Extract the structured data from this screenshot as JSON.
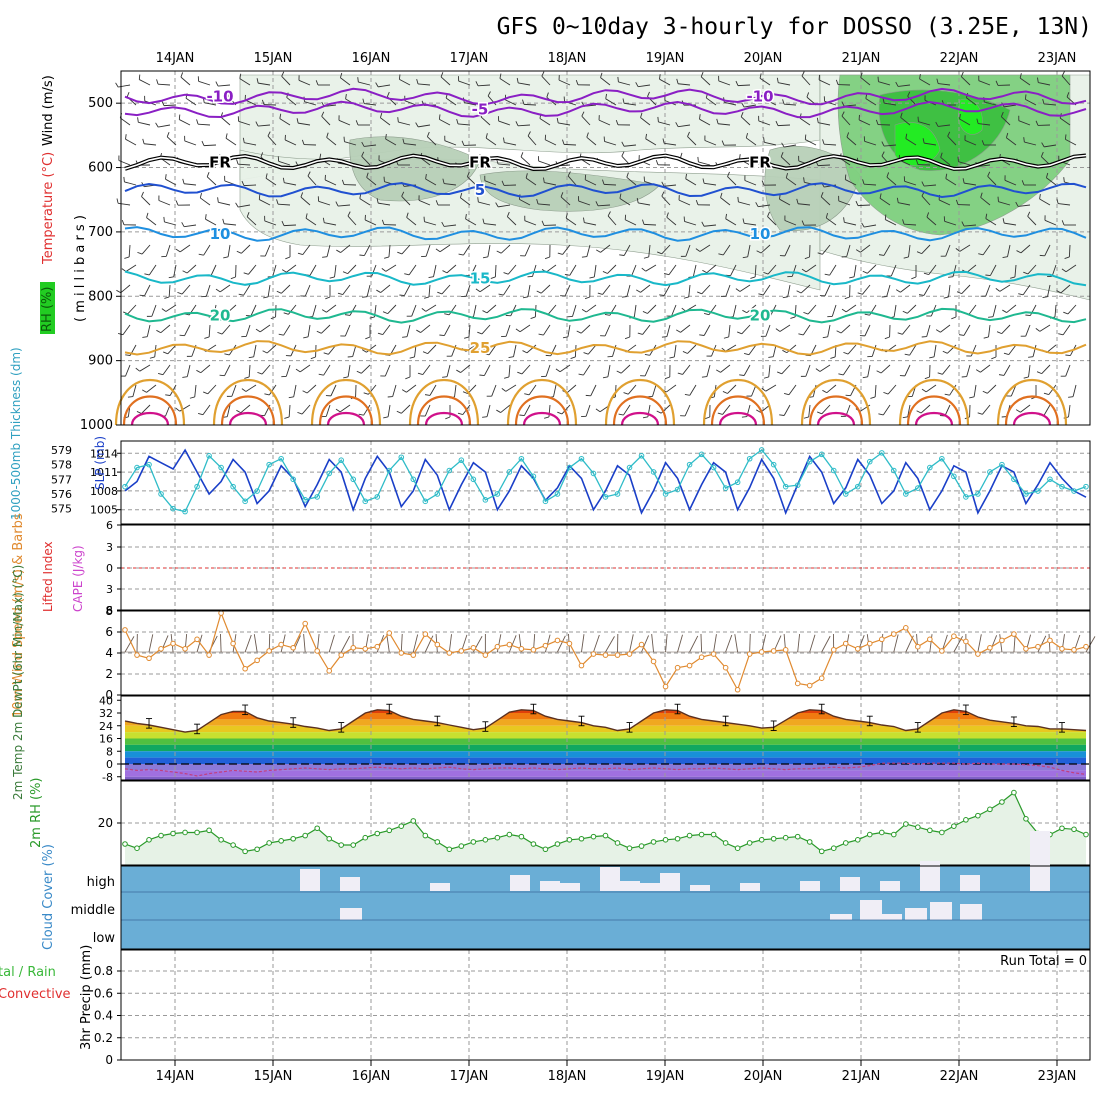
{
  "header": {
    "title": "GFS 0~10day 3-hourly for DOSSO (3.25E, 13N)"
  },
  "dates": [
    "14JAN",
    "15JAN",
    "16JAN",
    "17JAN",
    "18JAN",
    "19JAN",
    "20JAN",
    "21JAN",
    "22JAN",
    "23JAN"
  ],
  "colors": {
    "frame": "#000000",
    "grid": "#9a9a9a",
    "temp_cold": "#8a1fc4",
    "temp_blue": "#2050d0",
    "temp_lblue": "#1f8fe0",
    "temp_cyan": "#19b8c8",
    "temp_teal": "#1fb890",
    "temp_warm": "#e0a030",
    "temp_orange": "#e07020",
    "temp_magenta": "#d0108a",
    "rh_light": "#e8f2e8",
    "rh_mid": "#b8d0b8",
    "rh_green": "#3cc040",
    "rh_bright": "#22ee22",
    "slp": "#1a3fc8",
    "thick": "#2fbcc8",
    "wind10": "#e08a30",
    "rh2m": "#2a9a2a",
    "cloud": "#6aaed6"
  },
  "chart_data": [
    {
      "id": "upper-air",
      "type": "heatmap",
      "ylabel_parts": {
        "rh": "RH (%)",
        "temp": "Temperature (°C)",
        "wind": "Wind (m/s)",
        "mb": "( m i l l i b a r s )"
      },
      "ylim": [
        1000,
        450
      ],
      "ticks": [
        "500",
        "600",
        "700",
        "800",
        "900",
        "1000"
      ],
      "isotherms": [
        {
          "label": "-10",
          "level": 490
        },
        {
          "label": "-5",
          "level": 510
        },
        {
          "label": "FR",
          "level": 592
        },
        {
          "label": "5",
          "level": 635
        },
        {
          "label": "10",
          "level": 703
        },
        {
          "label": "15",
          "level": 772
        },
        {
          "label": "20",
          "level": 830
        },
        {
          "label": "25",
          "level": 880
        }
      ]
    },
    {
      "id": "slp-thickness",
      "type": "line",
      "ylabel_left": "1000-500mb Thickness (dm)",
      "ylabel_right": "SLP (mb)",
      "thick_ticks": [
        "579",
        "578",
        "577",
        "576",
        "575"
      ],
      "slp_ticks": [
        "1014",
        "1011",
        "1008",
        "1005"
      ],
      "series": [
        {
          "name": "SLP (mb)",
          "values": [
            1008,
            1009.5,
            1013.5,
            1012.5,
            1011.5,
            1014.5,
            1011,
            1007.5,
            1009.5,
            1013,
            1011,
            1006,
            1008,
            1012,
            1010,
            1005.5,
            1009,
            1013,
            1011,
            1005,
            1010,
            1013.5,
            1011,
            1005.5,
            1008,
            1013,
            1010.5,
            1005,
            1009,
            1012.5,
            1011,
            1005,
            1008,
            1012,
            1010,
            1006.5,
            1008.5,
            1012,
            1010,
            1005,
            1008,
            1012,
            1010.5,
            1004.5,
            1008,
            1012.5,
            1010,
            1005,
            1009,
            1012.5,
            1011,
            1005,
            1008.5,
            1013,
            1010,
            1004.5,
            1009,
            1013.5,
            1011,
            1006,
            1008.5,
            1013,
            1010.5,
            1006,
            1008,
            1012.5,
            1010,
            1005,
            1008,
            1012,
            1011,
            1004.5,
            1008,
            1012,
            1011,
            1006,
            1009,
            1012.5,
            1010,
            1008,
            1007
          ]
        },
        {
          "name": "Thickness (dm)",
          "values": [
            576.5,
            577.8,
            578,
            576,
            575,
            574.8,
            576.5,
            578.6,
            577.8,
            576.5,
            575.5,
            576.2,
            578,
            578.4,
            577,
            575.6,
            575.8,
            577.4,
            578.3,
            577,
            575.5,
            575.8,
            577.6,
            578.5,
            577,
            575.5,
            576,
            577.6,
            578.3,
            577,
            575.6,
            576,
            577.5,
            578.4,
            577.2,
            575.5,
            576,
            577.8,
            578.4,
            577.4,
            575.8,
            576,
            577.8,
            578.6,
            577.5,
            576,
            576.3,
            578,
            578.7,
            577.8,
            576.4,
            576.8,
            578.4,
            579,
            578,
            576.5,
            576.6,
            578.2,
            578.7,
            577.6,
            576,
            576.5,
            578.2,
            578.8,
            577.6,
            576,
            576.4,
            577.8,
            578.4,
            577.2,
            575.8,
            576,
            577.5,
            578,
            577,
            576,
            576.2,
            577,
            576.5,
            576.2,
            576.5
          ]
        }
      ]
    },
    {
      "id": "cape-li",
      "type": "line",
      "ylabel_left": "Lifted Index",
      "ylabel_right": "CAPE (J/kg)",
      "ticks": [
        "6",
        "3",
        "0",
        "3",
        "6"
      ]
    },
    {
      "id": "wind10m",
      "type": "line",
      "ylabel": "10m Wind Speed (m/s) & Barbs",
      "ticks": [
        "8",
        "6",
        "4",
        "2",
        "0"
      ],
      "series": [
        {
          "name": "Wind Speed (m/s)",
          "values": [
            6.2,
            3.8,
            3.5,
            4.4,
            4.9,
            4.4,
            5.3,
            3.8,
            7.8,
            4.9,
            2.5,
            3.3,
            4.2,
            4.8,
            4.5,
            6.8,
            4.2,
            2.3,
            3.8,
            4.5,
            4.4,
            4.6,
            5.9,
            4.0,
            3.8,
            5.8,
            4.8,
            4.0,
            4.2,
            4.5,
            3.8,
            4.6,
            4.8,
            4.4,
            4.3,
            4.7,
            5.2,
            4.9,
            2.8,
            3.9,
            3.8,
            3.8,
            3.9,
            4.8,
            3.2,
            0.8,
            2.6,
            2.8,
            3.6,
            3.9,
            2.6,
            0.5,
            3.9,
            4.1,
            4.2,
            4.3,
            1.1,
            0.9,
            1.6,
            4.3,
            4.9,
            4.4,
            4.9,
            5.3,
            5.8,
            6.4,
            4.6,
            5.3,
            4.2,
            5.6,
            5.1,
            3.9,
            4.5,
            5.2,
            5.8,
            4.4,
            4.6,
            5.2,
            4.4,
            4.3,
            4.6
          ]
        }
      ]
    },
    {
      "id": "temp2m",
      "type": "area",
      "ylabel": "2m Temp 2m DewPt (6hr Min/Max) (°C)",
      "ticks": [
        "40",
        "32",
        "24",
        "16",
        "8",
        "0",
        "-8"
      ],
      "series": [
        {
          "name": "2m Temp (°C)",
          "values": [
            27,
            25.5,
            24.5,
            23,
            21.5,
            20,
            21,
            26,
            31,
            33,
            33,
            29,
            27,
            26,
            25,
            23.5,
            22.5,
            21,
            22,
            27,
            32,
            34,
            33.5,
            30,
            28,
            27,
            26,
            24.5,
            23,
            21.5,
            22.5,
            27.5,
            32.5,
            34,
            33.5,
            30,
            28,
            27,
            26,
            24,
            23,
            21,
            22,
            27,
            32,
            34,
            33.5,
            30,
            28,
            27,
            26,
            25,
            24,
            22.5,
            23,
            27.5,
            32,
            34,
            33.5,
            30,
            28,
            27,
            26,
            24.5,
            23.5,
            21,
            22,
            27,
            32,
            34,
            33,
            29.5,
            27.5,
            26.5,
            25.5,
            24,
            23.5,
            22,
            22,
            21.5,
            21
          ]
        },
        {
          "name": "2m DewPt (°C)",
          "values": [
            -3,
            -4,
            -3.5,
            -4,
            -5,
            -6,
            -7.5,
            -6,
            -5,
            -4,
            -4.5,
            -5,
            -4,
            -3.5,
            -3,
            -2.5,
            -3,
            -3.5,
            -3,
            -3,
            -2.5,
            -2,
            -2.5,
            -3,
            -2.5,
            -3,
            -2.5,
            -2,
            -3,
            -3.5,
            -3,
            -2.5,
            -2.5,
            -3,
            -2.5,
            -3,
            -3.5,
            -3,
            -2.5,
            -3,
            -3,
            -2.5,
            -3.5,
            -3,
            -2.5,
            -3,
            -3.5,
            -3,
            -3,
            -2.5,
            -3,
            -3.5,
            -3,
            -2.5,
            -3,
            -3.5,
            -3,
            -3,
            -2.5,
            -2,
            -2.5,
            -2,
            -1,
            0.5,
            0.5,
            0.5,
            0,
            0.5,
            0.5,
            0.5,
            0,
            0.5,
            0,
            0,
            0,
            -0.5,
            -1,
            -2,
            -4,
            -5.5,
            -6.5
          ]
        }
      ]
    },
    {
      "id": "rh2m",
      "type": "area",
      "ylabel": "2m RH (%)",
      "ticks": [
        "20"
      ],
      "series": [
        {
          "name": "2m RH (%)",
          "values": [
            10,
            8,
            12,
            14,
            15,
            15.5,
            15.5,
            16.5,
            12,
            9.5,
            6.5,
            7.5,
            10.5,
            11.5,
            12.5,
            14,
            17.5,
            12.5,
            9.5,
            9.5,
            13,
            15,
            16.5,
            18.5,
            21,
            14,
            11,
            7.5,
            9,
            11,
            12,
            13,
            14.5,
            13.5,
            10,
            7.5,
            10,
            12,
            12.5,
            13.5,
            14,
            10.5,
            8,
            9,
            11,
            12,
            12.5,
            14,
            14.5,
            14.5,
            10.5,
            8,
            10.5,
            12,
            12.5,
            13,
            13.5,
            11,
            6.5,
            8,
            10.5,
            12,
            14.5,
            15.5,
            14.5,
            19.5,
            18,
            16.5,
            15.5,
            18.5,
            21.5,
            23.5,
            26.5,
            30,
            34.5,
            22,
            15,
            14.5,
            17.5,
            17,
            14.5
          ]
        }
      ]
    },
    {
      "id": "cloud-cover",
      "type": "heatmap",
      "ylabel": "Cloud Cover (%)",
      "levels": [
        "high",
        "middle",
        "low"
      ]
    },
    {
      "id": "precip",
      "type": "bar",
      "ylabel_left": "Total / Rain Convective",
      "ylabel": "3hr Precip (mm)",
      "ticks": [
        "0.8",
        "0.6",
        "0.4",
        "0.2",
        "0"
      ],
      "run_total": "Run Total = 0"
    }
  ]
}
